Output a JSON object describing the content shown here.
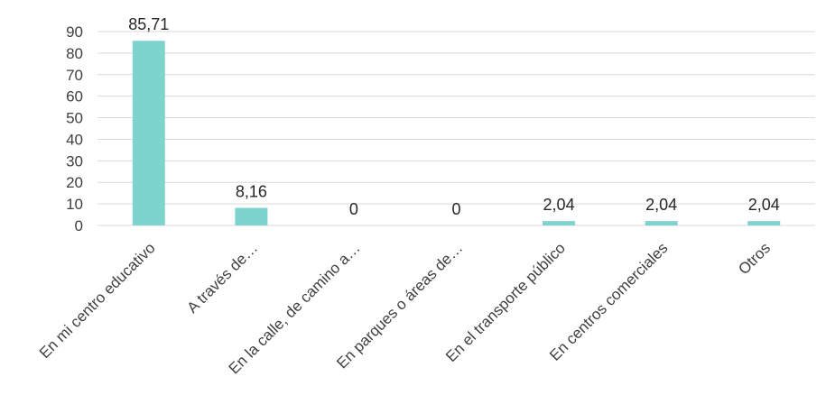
{
  "chart_data": {
    "type": "bar",
    "categories": [
      "En mi centro educativo",
      "A través de…",
      "En la calle, de camino a…",
      "En parques o áreas de…",
      "En el transporte público",
      "En centros comerciales",
      "Otros"
    ],
    "values": [
      85.71,
      8.16,
      0,
      0,
      2.04,
      2.04,
      2.04
    ],
    "data_labels": [
      "85,71",
      "8,16",
      "0",
      "0",
      "2,04",
      "2,04",
      "2,04"
    ],
    "yticks": [
      0,
      10,
      20,
      30,
      40,
      50,
      60,
      70,
      80,
      90
    ],
    "ylim": [
      0,
      90
    ],
    "grid": true,
    "legend": "none",
    "bar_color": "#7fd3cf",
    "grid_color": "#d9d9d9"
  }
}
